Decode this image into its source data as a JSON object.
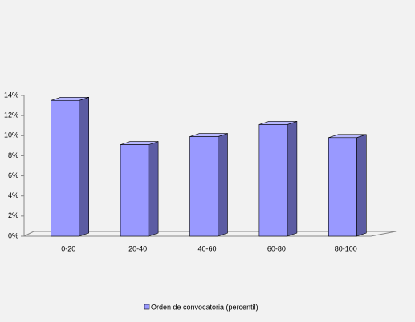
{
  "chart_data": {
    "type": "bar3d",
    "categories": [
      "0-20",
      "20-40",
      "40-60",
      "60-80",
      "80-100"
    ],
    "series": [
      {
        "name": "Orden de convocatoria (percentil)",
        "color": "#9999ff",
        "values": [
          13.5,
          9.1,
          9.9,
          11.1,
          9.8
        ]
      }
    ],
    "ylim": [
      0,
      14
    ],
    "yticks": [
      {
        "value": 0,
        "label": "0%"
      },
      {
        "value": 2,
        "label": "2%"
      },
      {
        "value": 4,
        "label": "4%"
      },
      {
        "value": 6,
        "label": "6%"
      },
      {
        "value": 8,
        "label": "8%"
      },
      {
        "value": 10,
        "label": "10%"
      },
      {
        "value": 12,
        "label": "12%"
      },
      {
        "value": 14,
        "label": "14%"
      }
    ],
    "legend": "bottom"
  }
}
